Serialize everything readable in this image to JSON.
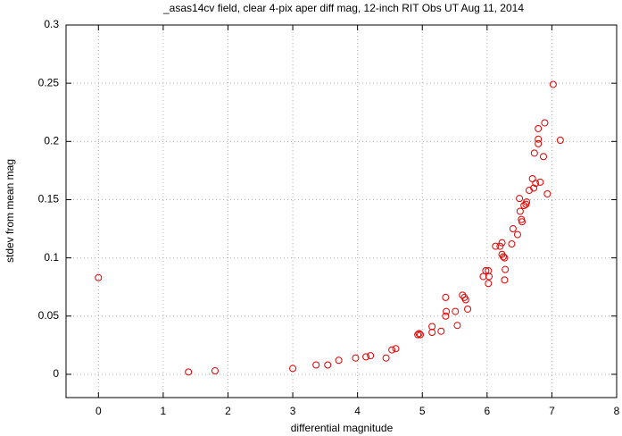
{
  "chart_data": {
    "type": "scatter",
    "title": "_asas14cv field, clear 4-pix aper diff mag,  12-inch RIT Obs UT Aug 11, 2014",
    "x_label": "differential magnitude",
    "y_label": "stdev from mean mag",
    "color": "#e00000",
    "grid": true,
    "xlim": [
      -0.5,
      8
    ],
    "ylim": [
      -0.02,
      0.3
    ],
    "xticks": [
      0,
      1,
      2,
      3,
      4,
      5,
      6,
      7,
      8
    ],
    "yticks": [
      0,
      0.05,
      0.1,
      0.15,
      0.2,
      0.25,
      0.3
    ],
    "x": [
      0,
      1.39,
      1.8,
      3.0,
      3.36,
      3.54,
      3.71,
      3.97,
      4.13,
      4.2,
      4.44,
      4.53,
      4.59,
      4.93,
      4.95,
      4.97,
      5.15,
      5.15,
      5.29,
      5.36,
      5.37,
      5.36,
      5.51,
      5.54,
      5.62,
      5.65,
      5.67,
      5.7,
      5.94,
      5.98,
      6.02,
      6.03,
      6.02,
      6.13,
      6.2,
      6.23,
      6.23,
      6.25,
      6.27,
      6.28,
      6.27,
      6.38,
      6.4,
      6.47,
      6.51,
      6.5,
      6.53,
      6.54,
      6.57,
      6.6,
      6.61,
      6.65,
      6.7,
      6.72,
      6.75,
      6.73,
      6.79,
      6.79,
      6.79,
      6.82,
      6.87,
      6.89,
      6.93,
      7.02,
      7.13
    ],
    "values": [
      0.083,
      0.002,
      0.003,
      0.005,
      0.008,
      0.008,
      0.012,
      0.014,
      0.015,
      0.016,
      0.014,
      0.021,
      0.022,
      0.034,
      0.035,
      0.034,
      0.036,
      0.041,
      0.037,
      0.05,
      0.054,
      0.066,
      0.054,
      0.042,
      0.068,
      0.066,
      0.064,
      0.056,
      0.084,
      0.089,
      0.089,
      0.084,
      0.078,
      0.11,
      0.11,
      0.113,
      0.103,
      0.101,
      0.1,
      0.09,
      0.081,
      0.112,
      0.125,
      0.12,
      0.14,
      0.151,
      0.133,
      0.131,
      0.145,
      0.146,
      0.148,
      0.158,
      0.168,
      0.16,
      0.164,
      0.19,
      0.211,
      0.202,
      0.198,
      0.165,
      0.187,
      0.216,
      0.155,
      0.249,
      0.201
    ]
  }
}
